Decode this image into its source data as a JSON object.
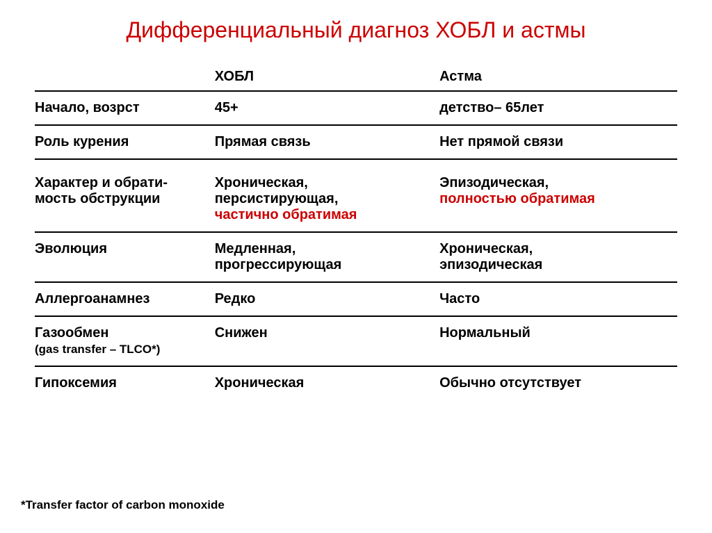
{
  "title": "Дифференциальный диагноз ХОБЛ и астмы",
  "columns": {
    "blank": "",
    "col1": "ХОБЛ",
    "col2": "Астма"
  },
  "rows": [
    {
      "label": "Начало, возрст",
      "hobl": [
        {
          "text": "45+",
          "bold": true,
          "red": false
        }
      ],
      "asthma": [
        {
          "text": "детство– 65лет",
          "bold": true,
          "red": false
        }
      ]
    },
    {
      "label": "Роль курения",
      "hobl": [
        {
          "text": "Прямая связь",
          "bold": true,
          "red": false
        }
      ],
      "asthma": [
        {
          "text": "Нет прямой связи",
          "bold": true,
          "red": false
        }
      ]
    },
    {
      "label": "Характер и обрати-мость обструкции",
      "hobl": [
        {
          "text": "Хроническая,",
          "bold": true,
          "red": false
        },
        {
          "text": "персистирующая,",
          "bold": true,
          "red": false
        },
        {
          "text": "частично обратимая",
          "bold": true,
          "red": true
        }
      ],
      "asthma": [
        {
          "text": "Эпизодическая,",
          "bold": true,
          "red": false
        },
        {
          "text": "полностью обратимая",
          "bold": true,
          "red": true
        }
      ],
      "extraSpace": true
    },
    {
      "label": "Эволюция",
      "hobl": [
        {
          "text": "Медленная,",
          "bold": true,
          "red": false
        },
        {
          "text": "прогрессирующая",
          "bold": true,
          "red": false
        }
      ],
      "asthma": [
        {
          "text": "Хроническая,",
          "bold": true,
          "red": false
        },
        {
          "text": "эпизодическая",
          "bold": true,
          "red": false
        }
      ]
    },
    {
      "label": "Аллергоанамнез",
      "hobl": [
        {
          "text": "Редко",
          "bold": true,
          "red": false
        }
      ],
      "asthma": [
        {
          "text": "Часто",
          "bold": true,
          "red": false
        }
      ]
    },
    {
      "label": "Газообмен",
      "labelSub": "(gas transfer – TLCO*)",
      "hobl": [
        {
          "text": "Снижен",
          "bold": true,
          "red": false
        }
      ],
      "asthma": [
        {
          "text": "Нормальный",
          "bold": true,
          "red": false
        }
      ]
    },
    {
      "label": "Гипоксемия",
      "hobl": [
        {
          "text": "Хроническая",
          "bold": true,
          "red": false
        }
      ],
      "asthma": [
        {
          "text": "Обычно отсутствует",
          "bold": true,
          "red": false
        }
      ]
    }
  ],
  "footnote": "*Transfer factor of carbon monoxide",
  "styling": {
    "type": "table",
    "background_color": "#ffffff",
    "title_color": "#cc0000",
    "title_fontsize": 32,
    "body_fontsize": 20,
    "text_color": "#000000",
    "accent_red": "#cc0000",
    "border_color": "#000000",
    "border_width": 2,
    "column_widths_pct": [
      28,
      35,
      37
    ],
    "footnote_fontsize": 17
  }
}
